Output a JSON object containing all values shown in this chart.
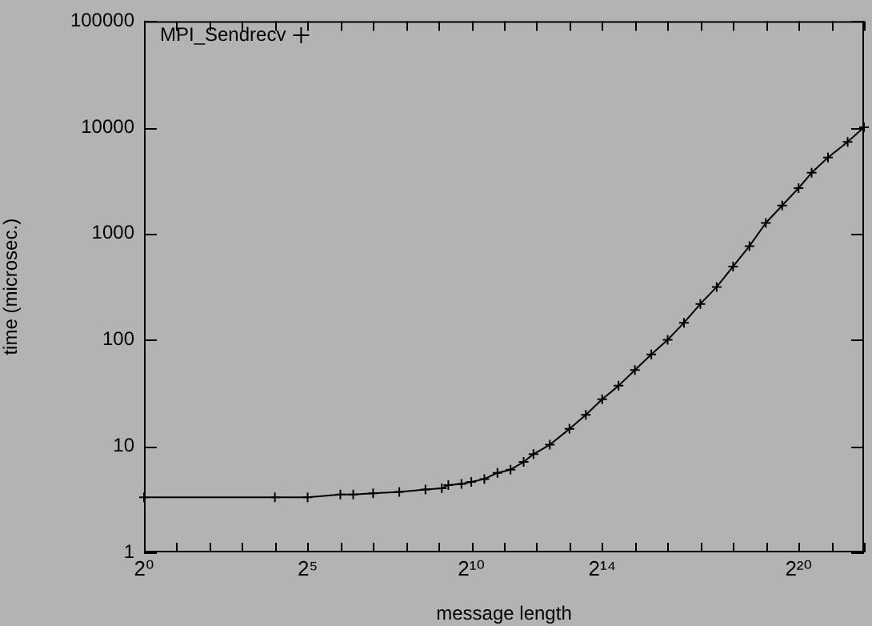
{
  "chart_data": {
    "type": "line",
    "xlabel": "message length",
    "ylabel": "time (microsec.)",
    "x": [
      1,
      16,
      32,
      64,
      84,
      128,
      223,
      388,
      549,
      630,
      832,
      1024,
      1351,
      1783,
      2353,
      3104,
      3822,
      5405,
      8192,
      11585,
      16384,
      23170,
      32768,
      46341,
      65536,
      92682,
      131072,
      185364,
      262144,
      370728,
      524288,
      741455,
      1048576,
      1383604,
      1956502,
      2965821,
      4194304
    ],
    "series": [
      {
        "name": "MPI_Sendrecv",
        "color": "#000000",
        "values": [
          3.3,
          3.3,
          3.3,
          3.5,
          3.5,
          3.6,
          3.7,
          3.9,
          4.0,
          4.3,
          4.4,
          4.6,
          4.9,
          5.6,
          6.0,
          7.1,
          8.4,
          10.3,
          14.5,
          19.7,
          27.6,
          37,
          52,
          73,
          100,
          145,
          218,
          315,
          490,
          763,
          1260,
          1840,
          2680,
          3740,
          5200,
          7300,
          10000
        ]
      }
    ],
    "log": "xy",
    "xlim": [
      1,
      4194304
    ],
    "ylim": [
      1,
      100000
    ],
    "xticks": [
      {
        "value": 1,
        "label": "2⁰"
      },
      {
        "value": 2,
        "label": null
      },
      {
        "value": 4,
        "label": null
      },
      {
        "value": 8,
        "label": null
      },
      {
        "value": 16,
        "label": null
      },
      {
        "value": 32,
        "label": "2⁵"
      },
      {
        "value": 64,
        "label": null
      },
      {
        "value": 128,
        "label": null
      },
      {
        "value": 256,
        "label": null
      },
      {
        "value": 512,
        "label": null
      },
      {
        "value": 1024,
        "label": "2¹⁰"
      },
      {
        "value": 2048,
        "label": null
      },
      {
        "value": 4096,
        "label": null
      },
      {
        "value": 8192,
        "label": null
      },
      {
        "value": 16384,
        "label": "2¹⁴"
      },
      {
        "value": 32768,
        "label": null
      },
      {
        "value": 65536,
        "label": null
      },
      {
        "value": 131072,
        "label": null
      },
      {
        "value": 262144,
        "label": null
      },
      {
        "value": 524288,
        "label": null
      },
      {
        "value": 1048576,
        "label": "2²⁰"
      },
      {
        "value": 2097152,
        "label": null
      },
      {
        "value": 4194304,
        "label": null
      }
    ],
    "yticks": [
      1,
      10,
      100,
      1000,
      10000,
      100000
    ],
    "grid": false,
    "legend": "top left",
    "marker": "cross",
    "line_style": "solid"
  }
}
